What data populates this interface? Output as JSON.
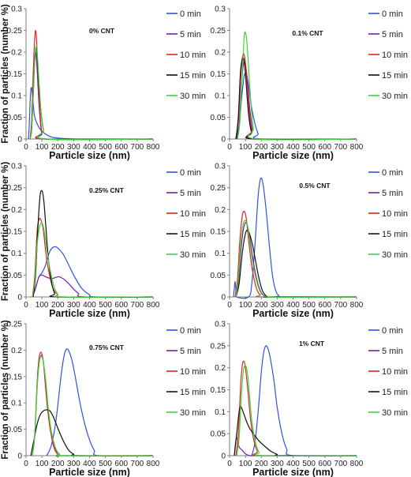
{
  "legend_labels": [
    "0 min",
    "5 min",
    "10 min",
    "15 min",
    "30 min"
  ],
  "colors": {
    "0 min": "#2f52e0",
    "5 min": "#7a1fa8",
    "10 min": "#e82222",
    "15 min": "#111111",
    "30 min": "#3ad43a",
    "axis": "#7f7f7f"
  },
  "chart_data": [
    {
      "type": "line",
      "title": "0% CNT",
      "xlabel": "Particle size (nm)",
      "ylabel": "Fraction of particles (number %)",
      "xlim": [
        0,
        800
      ],
      "ylim": [
        0,
        0.3
      ],
      "xticks": [
        "0",
        "100",
        "200",
        "300",
        "400",
        "500",
        "600",
        "700",
        "800"
      ],
      "yticks": [
        "0",
        "0.05",
        "0.1",
        "0.15",
        "0.2",
        "0.25",
        "0.3"
      ],
      "series": [
        {
          "name": "0 min",
          "x": [
            15,
            20,
            25,
            30,
            35,
            40,
            48,
            55,
            70,
            90,
            120,
            150,
            180,
            250,
            350,
            500,
            800
          ],
          "y": [
            0,
            0.03,
            0.08,
            0.112,
            0.118,
            0.1,
            0.07,
            0.05,
            0.035,
            0.022,
            0.012,
            0.006,
            0.003,
            0.001,
            0,
            0,
            0
          ]
        },
        {
          "name": "5 min",
          "x": [
            25,
            35,
            45,
            55,
            62,
            70,
            80,
            90,
            100,
            115,
            800
          ],
          "y": [
            0,
            0.03,
            0.12,
            0.19,
            0.198,
            0.16,
            0.09,
            0.04,
            0.012,
            0,
            0
          ]
        },
        {
          "name": "10 min",
          "x": [
            25,
            35,
            45,
            55,
            62,
            70,
            80,
            90,
            100,
            115,
            800
          ],
          "y": [
            0,
            0.04,
            0.15,
            0.232,
            0.248,
            0.2,
            0.11,
            0.05,
            0.015,
            0,
            0
          ]
        },
        {
          "name": "15 min",
          "x": [
            25,
            35,
            45,
            55,
            65,
            72,
            82,
            95,
            110,
            125,
            800
          ],
          "y": [
            0,
            0.02,
            0.1,
            0.18,
            0.212,
            0.18,
            0.12,
            0.06,
            0.02,
            0,
            0
          ]
        },
        {
          "name": "30 min",
          "x": [
            25,
            35,
            45,
            55,
            65,
            72,
            82,
            95,
            110,
            125,
            800
          ],
          "y": [
            0,
            0.02,
            0.1,
            0.185,
            0.215,
            0.19,
            0.13,
            0.06,
            0.02,
            0,
            0
          ]
        }
      ]
    },
    {
      "type": "line",
      "title": "0.1% CNT",
      "xlabel": "Particle size (nm)",
      "ylabel": "",
      "xlim": [
        0,
        800
      ],
      "ylim": [
        0,
        0.3
      ],
      "xticks": [
        "0",
        "100",
        "200",
        "300",
        "400",
        "500",
        "600",
        "700",
        "800"
      ],
      "yticks": [
        "0",
        "0.05",
        "0.1",
        "0.15",
        "0.2",
        "0.25",
        "0.3"
      ],
      "series": [
        {
          "name": "0 min",
          "x": [
            40,
            60,
            75,
            90,
            100,
            110,
            125,
            140,
            160,
            180,
            200,
            800
          ],
          "y": [
            0,
            0.03,
            0.09,
            0.14,
            0.152,
            0.145,
            0.11,
            0.07,
            0.035,
            0.012,
            0,
            0
          ]
        },
        {
          "name": "5 min",
          "x": [
            45,
            60,
            75,
            85,
            95,
            105,
            118,
            130,
            145,
            165,
            800
          ],
          "y": [
            0,
            0.03,
            0.12,
            0.165,
            0.178,
            0.16,
            0.11,
            0.06,
            0.02,
            0,
            0
          ]
        },
        {
          "name": "10 min",
          "x": [
            40,
            55,
            70,
            80,
            90,
            100,
            112,
            125,
            140,
            160,
            800
          ],
          "y": [
            0,
            0.04,
            0.14,
            0.185,
            0.196,
            0.175,
            0.12,
            0.06,
            0.02,
            0,
            0
          ]
        },
        {
          "name": "15 min",
          "x": [
            40,
            55,
            68,
            78,
            88,
            98,
            110,
            122,
            138,
            155,
            800
          ],
          "y": [
            0,
            0.05,
            0.15,
            0.18,
            0.186,
            0.16,
            0.1,
            0.05,
            0.015,
            0,
            0
          ]
        },
        {
          "name": "30 min",
          "x": [
            50,
            65,
            80,
            92,
            100,
            110,
            122,
            135,
            150,
            170,
            800
          ],
          "y": [
            0,
            0.04,
            0.15,
            0.235,
            0.245,
            0.22,
            0.15,
            0.08,
            0.025,
            0,
            0
          ]
        }
      ]
    },
    {
      "type": "line",
      "title": "0.25% CNT",
      "xlabel": "Particle size (nm)",
      "ylabel": "Fraction of particles (number %)",
      "xlim": [
        0,
        800
      ],
      "ylim": [
        0,
        0.3
      ],
      "xticks": [
        "0",
        "100",
        "200",
        "300",
        "400",
        "500",
        "600",
        "700",
        "800"
      ],
      "yticks": [
        "0",
        "0.05",
        "0.1",
        "0.15",
        "0.2",
        "0.25",
        "0.3"
      ],
      "series": [
        {
          "name": "0 min",
          "x": [
            40,
            60,
            80,
            100,
            120,
            140,
            160,
            180,
            200,
            230,
            260,
            300,
            350,
            400,
            440,
            800
          ],
          "y": [
            0,
            0.02,
            0.045,
            0.055,
            0.07,
            0.095,
            0.11,
            0.115,
            0.112,
            0.1,
            0.08,
            0.05,
            0.02,
            0.005,
            0,
            0
          ]
        },
        {
          "name": "5 min",
          "x": [
            40,
            60,
            80,
            100,
            130,
            160,
            190,
            210,
            240,
            270,
            300,
            330,
            370,
            800
          ],
          "y": [
            0,
            0.02,
            0.045,
            0.05,
            0.045,
            0.042,
            0.045,
            0.046,
            0.04,
            0.03,
            0.018,
            0.008,
            0,
            0
          ]
        },
        {
          "name": "10 min",
          "x": [
            40,
            55,
            70,
            82,
            95,
            110,
            125,
            145,
            170,
            200,
            230,
            800
          ],
          "y": [
            0,
            0.05,
            0.15,
            0.178,
            0.175,
            0.15,
            0.1,
            0.055,
            0.02,
            0.005,
            0,
            0
          ]
        },
        {
          "name": "15 min",
          "x": [
            45,
            60,
            75,
            88,
            100,
            112,
            125,
            140,
            160,
            180,
            200,
            800
          ],
          "y": [
            0,
            0.05,
            0.16,
            0.23,
            0.243,
            0.22,
            0.16,
            0.09,
            0.035,
            0.008,
            0,
            0
          ]
        },
        {
          "name": "30 min",
          "x": [
            40,
            55,
            70,
            85,
            100,
            115,
            130,
            150,
            175,
            200,
            230,
            800
          ],
          "y": [
            0,
            0.04,
            0.12,
            0.16,
            0.17,
            0.15,
            0.11,
            0.065,
            0.025,
            0.006,
            0,
            0
          ]
        }
      ]
    },
    {
      "type": "line",
      "title": "0.5% CNT",
      "xlabel": "Particle size (nm)",
      "ylabel": "",
      "xlim": [
        0,
        800
      ],
      "ylim": [
        0,
        0.3
      ],
      "xticks": [
        "0",
        "100",
        "200",
        "300",
        "400",
        "500",
        "600",
        "700",
        "800"
      ],
      "yticks": [
        "0",
        "0.05",
        "0.1",
        "0.15",
        "0.2",
        "0.25",
        "0.3"
      ],
      "series": [
        {
          "name": "0 min",
          "x": [
            25,
            30,
            35,
            40,
            45,
            120,
            140,
            160,
            180,
            195,
            210,
            230,
            250,
            270,
            290,
            310,
            330,
            800
          ],
          "y": [
            0,
            0.02,
            0.035,
            0.015,
            0,
            0,
            0.03,
            0.12,
            0.23,
            0.27,
            0.26,
            0.2,
            0.12,
            0.05,
            0.015,
            0.003,
            0,
            0
          ]
        },
        {
          "name": "5 min",
          "x": [
            40,
            55,
            70,
            85,
            100,
            115,
            130,
            150,
            175,
            200,
            230,
            260,
            800
          ],
          "y": [
            0,
            0.03,
            0.1,
            0.15,
            0.17,
            0.16,
            0.13,
            0.08,
            0.035,
            0.01,
            0,
            0,
            0
          ]
        },
        {
          "name": "10 min",
          "x": [
            35,
            50,
            65,
            80,
            92,
            105,
            120,
            140,
            165,
            190,
            220,
            800
          ],
          "y": [
            0,
            0.04,
            0.13,
            0.185,
            0.196,
            0.18,
            0.13,
            0.07,
            0.025,
            0.005,
            0,
            0
          ]
        },
        {
          "name": "15 min",
          "x": [
            40,
            60,
            80,
            100,
            115,
            130,
            150,
            170,
            190,
            210,
            240,
            270,
            800
          ],
          "y": [
            0,
            0.03,
            0.1,
            0.145,
            0.152,
            0.14,
            0.11,
            0.07,
            0.035,
            0.012,
            0,
            0,
            0
          ]
        },
        {
          "name": "30 min",
          "x": [
            40,
            55,
            70,
            85,
            100,
            115,
            130,
            150,
            175,
            200,
            230,
            800
          ],
          "y": [
            0,
            0.04,
            0.12,
            0.165,
            0.175,
            0.16,
            0.12,
            0.07,
            0.03,
            0.008,
            0,
            0
          ]
        }
      ]
    },
    {
      "type": "line",
      "title": "0.75% CNT",
      "xlabel": "Particle size (nm)",
      "ylabel": "Fraction of particles (number %)",
      "xlim": [
        0,
        800
      ],
      "ylim": [
        0,
        0.25
      ],
      "xticks": [
        "0",
        "100",
        "200",
        "300",
        "400",
        "500",
        "600",
        "700",
        "800"
      ],
      "yticks": [
        "0",
        "0.05",
        "0.1",
        "0.15",
        "0.2",
        "0.25"
      ],
      "series": [
        {
          "name": "0 min",
          "x": [
            130,
            160,
            190,
            220,
            240,
            255,
            270,
            290,
            310,
            340,
            370,
            400,
            430,
            460,
            800
          ],
          "y": [
            0,
            0.02,
            0.07,
            0.15,
            0.19,
            0.202,
            0.198,
            0.18,
            0.15,
            0.1,
            0.06,
            0.03,
            0.01,
            0,
            0
          ]
        },
        {
          "name": "5 min",
          "x": [
            40,
            55,
            70,
            82,
            95,
            108,
            120,
            135,
            155,
            180,
            210,
            240,
            800
          ],
          "y": [
            0,
            0.04,
            0.13,
            0.175,
            0.19,
            0.18,
            0.15,
            0.1,
            0.05,
            0.015,
            0.003,
            0,
            0
          ]
        },
        {
          "name": "10 min",
          "x": [
            40,
            55,
            70,
            82,
            95,
            108,
            120,
            135,
            155,
            180,
            210,
            240,
            800
          ],
          "y": [
            0,
            0.04,
            0.14,
            0.185,
            0.196,
            0.18,
            0.14,
            0.09,
            0.045,
            0.012,
            0,
            0,
            0
          ]
        },
        {
          "name": "15 min",
          "x": [
            30,
            50,
            70,
            90,
            110,
            130,
            150,
            170,
            190,
            210,
            240,
            270,
            300,
            330,
            800
          ],
          "y": [
            0,
            0.03,
            0.06,
            0.078,
            0.085,
            0.087,
            0.085,
            0.075,
            0.06,
            0.045,
            0.025,
            0.01,
            0.003,
            0,
            0
          ]
        },
        {
          "name": "30 min",
          "x": [
            40,
            55,
            70,
            85,
            98,
            110,
            125,
            140,
            160,
            185,
            210,
            240,
            800
          ],
          "y": [
            0,
            0.04,
            0.13,
            0.18,
            0.188,
            0.175,
            0.14,
            0.09,
            0.045,
            0.015,
            0.003,
            0,
            0
          ]
        }
      ]
    },
    {
      "type": "line",
      "title": "1% CNT",
      "xlabel": "Particle size (nm)",
      "ylabel": "",
      "xlim": [
        0,
        800
      ],
      "ylim": [
        0,
        0.3
      ],
      "xticks": [
        "0",
        "100",
        "200",
        "300",
        "400",
        "500",
        "600",
        "700",
        "800"
      ],
      "yticks": [
        "0",
        "0.05",
        "0.1",
        "0.15",
        "0.2",
        "0.25",
        "0.3"
      ],
      "series": [
        {
          "name": "0 min",
          "x": [
            140,
            160,
            180,
            200,
            215,
            230,
            245,
            260,
            280,
            300,
            330,
            360,
            400,
            800
          ],
          "y": [
            0,
            0.03,
            0.1,
            0.19,
            0.235,
            0.25,
            0.24,
            0.215,
            0.17,
            0.11,
            0.05,
            0.015,
            0,
            0
          ]
        },
        {
          "name": "5 min",
          "x": [
            30,
            40,
            50,
            60,
            80,
            100,
            130,
            160,
            190,
            220,
            260,
            300,
            800
          ],
          "y": [
            0,
            0.035,
            0.038,
            0.02,
            0.012,
            0.004,
            0,
            0,
            0,
            0,
            0,
            0,
            0
          ]
        },
        {
          "name": "10 min",
          "x": [
            40,
            55,
            70,
            80,
            90,
            100,
            115,
            130,
            150,
            175,
            200,
            800
          ],
          "y": [
            0,
            0.05,
            0.16,
            0.205,
            0.215,
            0.2,
            0.15,
            0.09,
            0.04,
            0.01,
            0,
            0
          ]
        },
        {
          "name": "15 min",
          "x": [
            30,
            45,
            60,
            70,
            80,
            95,
            110,
            130,
            160,
            190,
            220,
            260,
            300,
            330,
            800
          ],
          "y": [
            0,
            0.05,
            0.1,
            0.112,
            0.105,
            0.09,
            0.075,
            0.06,
            0.045,
            0.032,
            0.022,
            0.01,
            0.003,
            0,
            0
          ]
        },
        {
          "name": "30 min",
          "x": [
            45,
            60,
            75,
            88,
            100,
            112,
            125,
            140,
            160,
            185,
            210,
            800
          ],
          "y": [
            0,
            0.04,
            0.14,
            0.195,
            0.205,
            0.19,
            0.14,
            0.08,
            0.035,
            0.008,
            0,
            0
          ]
        }
      ]
    }
  ]
}
